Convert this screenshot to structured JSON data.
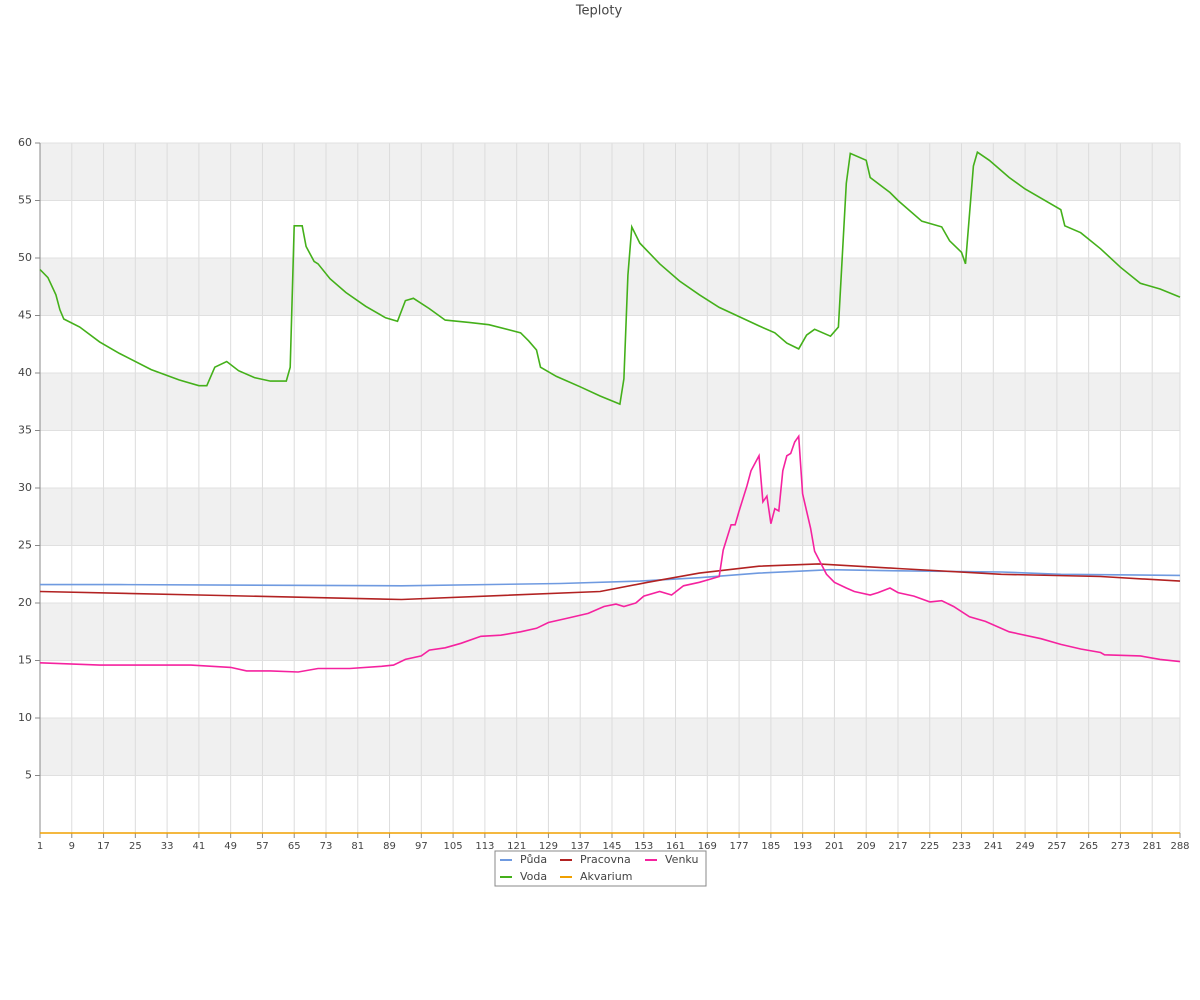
{
  "chart_data": {
    "type": "line",
    "title": "Teploty",
    "xlim": [
      1,
      288
    ],
    "ylim": [
      0,
      60
    ],
    "yticks": [
      5,
      10,
      15,
      20,
      25,
      30,
      35,
      40,
      45,
      50,
      55,
      60
    ],
    "xticks": [
      1,
      9,
      17,
      25,
      33,
      41,
      49,
      57,
      65,
      73,
      81,
      89,
      97,
      105,
      113,
      121,
      129,
      137,
      145,
      153,
      161,
      169,
      177,
      185,
      193,
      201,
      209,
      217,
      225,
      233,
      241,
      249,
      257,
      265,
      273,
      281,
      288
    ],
    "grid": true,
    "legend": "bottom",
    "series": [
      {
        "name": "Půda",
        "color": "#6f9ae0",
        "x": [
          1,
          21,
          92,
          132,
          152,
          167,
          182,
          200,
          217,
          243,
          258,
          288
        ],
        "values": [
          21.6,
          21.6,
          21.5,
          21.7,
          21.9,
          22.2,
          22.6,
          22.9,
          22.8,
          22.7,
          22.5,
          22.4
        ]
      },
      {
        "name": "Voda",
        "color": "#44b01a",
        "x": [
          1,
          3,
          5,
          6,
          7,
          11,
          16,
          21,
          29,
          36,
          41,
          43,
          45,
          48,
          51,
          55,
          59,
          63,
          64,
          65,
          67,
          68,
          70,
          71,
          74,
          78,
          83,
          88,
          91,
          93,
          95,
          99,
          103,
          109,
          114,
          122,
          124,
          126,
          127,
          131,
          137,
          142,
          147,
          148,
          149,
          150,
          152,
          157,
          162,
          167,
          172,
          177,
          182,
          186,
          189,
          192,
          194,
          196,
          200,
          202,
          204,
          205,
          209,
          210,
          215,
          217,
          223,
          228,
          230,
          233,
          234,
          236,
          237,
          240,
          245,
          249,
          258,
          259,
          263,
          268,
          273,
          278,
          283,
          288
        ],
        "values": [
          49.0,
          48.3,
          46.8,
          45.5,
          44.7,
          44.0,
          42.7,
          41.7,
          40.3,
          39.4,
          38.9,
          38.9,
          40.5,
          41.0,
          40.2,
          39.6,
          39.3,
          39.3,
          40.5,
          52.8,
          52.8,
          51.0,
          49.7,
          49.5,
          48.2,
          47.0,
          45.8,
          44.8,
          44.5,
          46.3,
          46.5,
          45.6,
          44.6,
          44.4,
          44.2,
          43.5,
          42.8,
          42.0,
          40.5,
          39.7,
          38.8,
          38.0,
          37.3,
          39.5,
          48.5,
          52.7,
          51.3,
          49.5,
          48.0,
          46.8,
          45.7,
          44.9,
          44.1,
          43.5,
          42.6,
          42.1,
          43.3,
          43.8,
          43.2,
          44.0,
          56.5,
          59.1,
          58.5,
          57.0,
          55.7,
          55.0,
          53.2,
          52.7,
          51.5,
          50.5,
          49.5,
          58.0,
          59.2,
          58.5,
          57.0,
          56.0,
          54.2,
          52.8,
          52.2,
          50.8,
          49.2,
          47.8,
          47.3,
          46.6
        ]
      },
      {
        "name": "Pracovna",
        "color": "#b22222",
        "x": [
          1,
          41,
          92,
          142,
          154,
          167,
          182,
          197,
          217,
          243,
          268,
          288
        ],
        "values": [
          21.0,
          20.7,
          20.3,
          21.0,
          21.8,
          22.6,
          23.2,
          23.4,
          23.0,
          22.5,
          22.3,
          21.9
        ]
      },
      {
        "name": "Akvarium",
        "color": "#f0a000",
        "x": [
          1,
          288
        ],
        "values": [
          0,
          0
        ]
      },
      {
        "name": "Venku",
        "color": "#f5229f",
        "x": [
          1,
          16,
          39,
          49,
          53,
          59,
          66,
          71,
          79,
          87,
          90,
          93,
          97,
          99,
          103,
          107,
          112,
          117,
          122,
          126,
          129,
          134,
          139,
          143,
          146,
          148,
          151,
          153,
          157,
          160,
          163,
          167,
          170,
          172,
          173,
          175,
          176,
          177,
          179,
          180,
          182,
          183,
          184,
          185,
          186,
          187,
          188,
          189,
          190,
          191,
          192,
          193,
          195,
          196,
          199,
          201,
          204,
          206,
          210,
          212,
          215,
          217,
          221,
          225,
          228,
          231,
          235,
          239,
          245,
          253,
          258,
          263,
          268,
          269,
          278,
          283,
          288
        ],
        "values": [
          14.8,
          14.6,
          14.6,
          14.4,
          14.1,
          14.1,
          14.0,
          14.3,
          14.3,
          14.5,
          14.6,
          15.1,
          15.4,
          15.9,
          16.1,
          16.5,
          17.1,
          17.2,
          17.5,
          17.8,
          18.3,
          18.7,
          19.1,
          19.7,
          19.9,
          19.7,
          20.0,
          20.6,
          21.0,
          20.7,
          21.5,
          21.8,
          22.1,
          22.3,
          24.6,
          26.8,
          26.8,
          28.0,
          30.2,
          31.5,
          32.8,
          28.8,
          29.3,
          26.9,
          28.2,
          28.0,
          31.5,
          32.8,
          33.0,
          34.0,
          34.5,
          29.5,
          26.5,
          24.5,
          22.5,
          21.8,
          21.3,
          21.0,
          20.7,
          20.9,
          21.3,
          20.9,
          20.6,
          20.1,
          20.2,
          19.7,
          18.8,
          18.4,
          17.5,
          16.9,
          16.4,
          16.0,
          15.7,
          15.5,
          15.4,
          15.1,
          14.9
        ]
      }
    ]
  }
}
